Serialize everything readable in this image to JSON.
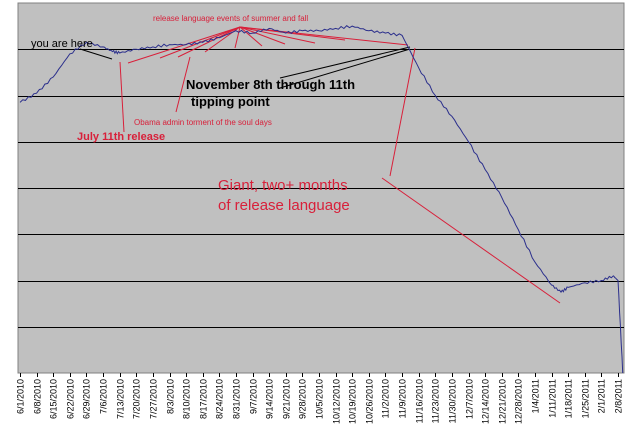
{
  "chart_data": {
    "type": "line",
    "title": "",
    "xlabel": "",
    "ylabel": "",
    "grid": true,
    "background_color": "#c0c0c0",
    "line_color": "#2b2f8c",
    "annotation_color": "#d8203a",
    "x_tick_labels": [
      "6/1/2010",
      "6/8/2010",
      "6/15/2010",
      "6/22/2010",
      "6/29/2010",
      "7/6/2010",
      "7/13/2010",
      "7/20/2010",
      "7/27/2010",
      "8/3/2010",
      "8/10/2010",
      "8/17/2010",
      "8/24/2010",
      "8/31/2010",
      "9/7/2010",
      "9/14/2010",
      "9/21/2010",
      "9/28/2010",
      "10/5/2010",
      "10/12/2010",
      "10/19/2010",
      "10/26/2010",
      "11/2/2010",
      "11/9/2010",
      "11/16/2010",
      "11/23/2010",
      "11/30/2010",
      "12/7/2010",
      "12/14/2010",
      "12/21/2010",
      "12/28/2010",
      "1/4/2011",
      "1/11/2011",
      "1/18/2011",
      "1/25/2011",
      "2/1/2011",
      "2/8/2011"
    ],
    "series": [
      {
        "points": [
          [
            "6/1/2010",
            4.85
          ],
          [
            "6/8/2010",
            5.05
          ],
          [
            "6/15/2010",
            5.4
          ],
          [
            "6/22/2010",
            5.9
          ],
          [
            "6/29/2010",
            6.15
          ],
          [
            "7/6/2010",
            6.05
          ],
          [
            "7/10/2010",
            5.95
          ],
          [
            "7/13/2010",
            5.92
          ],
          [
            "7/20/2010",
            6.0
          ],
          [
            "7/27/2010",
            6.05
          ],
          [
            "8/3/2010",
            6.1
          ],
          [
            "8/10/2010",
            6.1
          ],
          [
            "8/17/2010",
            6.15
          ],
          [
            "8/24/2010",
            6.25
          ],
          [
            "8/31/2010",
            6.4
          ],
          [
            "9/7/2010",
            6.35
          ],
          [
            "9/14/2010",
            6.45
          ],
          [
            "9/21/2010",
            6.35
          ],
          [
            "9/28/2010",
            6.4
          ],
          [
            "10/5/2010",
            6.4
          ],
          [
            "10/12/2010",
            6.45
          ],
          [
            "10/19/2010",
            6.5
          ],
          [
            "10/26/2010",
            6.4
          ],
          [
            "11/2/2010",
            6.35
          ],
          [
            "11/9/2010",
            6.3
          ],
          [
            "11/16/2010",
            5.6
          ],
          [
            "11/23/2010",
            5.0
          ],
          [
            "11/30/2010",
            4.55
          ],
          [
            "12/7/2010",
            4.0
          ],
          [
            "12/14/2010",
            3.4
          ],
          [
            "12/21/2010",
            2.8
          ],
          [
            "12/28/2010",
            2.1
          ],
          [
            "1/4/2011",
            1.4
          ],
          [
            "1/11/2011",
            0.9
          ],
          [
            "1/15/2011",
            0.75
          ],
          [
            "1/18/2011",
            0.85
          ],
          [
            "1/25/2011",
            0.95
          ],
          [
            "2/1/2011",
            1.0
          ],
          [
            "2/6/2011",
            1.1
          ],
          [
            "2/8/2011",
            1.0
          ],
          [
            "2/10/2011",
            -1.0
          ]
        ]
      }
    ],
    "annotations": {
      "summer_fall": "release language events of summer and fall",
      "you_are_here": "you are here",
      "november_line1": "November 8th through 11th",
      "november_line2": "tipping point",
      "obama_admin": "Obama admin torment of the soul days",
      "july_release": "July 11th release",
      "giant_line1": "Giant, two+ months",
      "giant_line2": "of release language"
    }
  }
}
